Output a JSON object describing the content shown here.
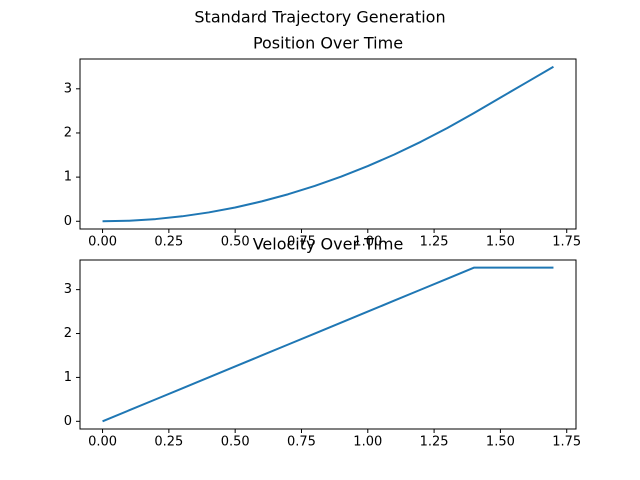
{
  "title": "Standard Trajectory Generation",
  "chart_data": [
    {
      "type": "line",
      "title": "Position Over Time",
      "x": [
        0,
        0.1,
        0.2,
        0.3,
        0.4,
        0.5,
        0.6,
        0.7,
        0.8,
        0.9,
        1.0,
        1.1,
        1.2,
        1.3,
        1.4,
        1.5,
        1.6,
        1.7
      ],
      "series": [
        {
          "color": "#1f77b4",
          "values": [
            0,
            0.0125,
            0.05,
            0.1125,
            0.2,
            0.3125,
            0.45,
            0.6125,
            0.8,
            1.0125,
            1.25,
            1.5125,
            1.8,
            2.1125,
            2.45,
            2.8,
            3.15,
            3.5
          ]
        }
      ],
      "xlim": [
        -0.085,
        1.785
      ],
      "ylim": [
        -0.175,
        3.675
      ],
      "xticks": [
        {
          "value": 0,
          "label": "0.00"
        },
        {
          "value": 0.25,
          "label": "0.25"
        },
        {
          "value": 0.5,
          "label": "0.50"
        },
        {
          "value": 0.75,
          "label": "0.75"
        },
        {
          "value": 1,
          "label": "1.00"
        },
        {
          "value": 1.25,
          "label": "1.25"
        },
        {
          "value": 1.5,
          "label": "1.50"
        },
        {
          "value": 1.75,
          "label": "1.75"
        }
      ],
      "yticks": [
        0,
        1,
        2,
        3
      ]
    },
    {
      "type": "line",
      "title": "Velocity Over Time",
      "x": [
        0,
        0.1,
        0.2,
        0.3,
        0.4,
        0.5,
        0.6,
        0.7,
        0.8,
        0.9,
        1.0,
        1.1,
        1.2,
        1.3,
        1.4,
        1.5,
        1.6,
        1.7
      ],
      "series": [
        {
          "color": "#1f77b4",
          "values": [
            0,
            0.25,
            0.5,
            0.75,
            1.0,
            1.25,
            1.5,
            1.75,
            2.0,
            2.25,
            2.5,
            2.75,
            3.0,
            3.25,
            3.5,
            3.5,
            3.5,
            3.5
          ]
        }
      ],
      "xlim": [
        -0.085,
        1.785
      ],
      "ylim": [
        -0.175,
        3.675
      ],
      "xticks": [
        {
          "value": 0,
          "label": "0.00"
        },
        {
          "value": 0.25,
          "label": "0.25"
        },
        {
          "value": 0.5,
          "label": "0.50"
        },
        {
          "value": 0.75,
          "label": "0.75"
        },
        {
          "value": 1,
          "label": "1.00"
        },
        {
          "value": 1.25,
          "label": "1.25"
        },
        {
          "value": 1.5,
          "label": "1.50"
        },
        {
          "value": 1.75,
          "label": "1.75"
        }
      ],
      "yticks": [
        0,
        1,
        2,
        3
      ]
    }
  ]
}
